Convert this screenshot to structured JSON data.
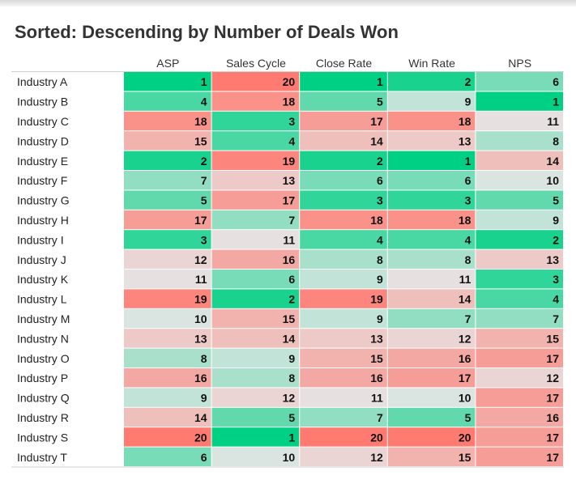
{
  "title": "Sorted: Descending by Number of Deals Won",
  "chart_data": {
    "type": "heatmap",
    "columns": [
      "ASP",
      "Sales Cycle",
      "Close Rate",
      "Win Rate",
      "NPS"
    ],
    "rows": [
      "Industry A",
      "Industry B",
      "Industry C",
      "Industry D",
      "Industry E",
      "Industry F",
      "Industry G",
      "Industry H",
      "Industry I",
      "Industry J",
      "Industry K",
      "Industry L",
      "Industry M",
      "Industry N",
      "Industry O",
      "Industry P",
      "Industry Q",
      "Industry R",
      "Industry S",
      "Industry T"
    ],
    "values": [
      [
        1,
        20,
        1,
        2,
        6
      ],
      [
        4,
        18,
        5,
        9,
        1
      ],
      [
        18,
        3,
        17,
        18,
        11
      ],
      [
        15,
        4,
        14,
        13,
        8
      ],
      [
        2,
        19,
        2,
        1,
        14
      ],
      [
        7,
        13,
        6,
        6,
        10
      ],
      [
        5,
        17,
        3,
        3,
        5
      ],
      [
        17,
        7,
        18,
        18,
        9
      ],
      [
        3,
        11,
        4,
        4,
        2
      ],
      [
        12,
        16,
        8,
        8,
        13
      ],
      [
        11,
        6,
        9,
        11,
        3
      ],
      [
        19,
        2,
        19,
        14,
        4
      ],
      [
        10,
        15,
        9,
        7,
        7
      ],
      [
        13,
        14,
        13,
        12,
        15
      ],
      [
        8,
        9,
        15,
        16,
        17
      ],
      [
        16,
        8,
        16,
        17,
        12
      ],
      [
        9,
        12,
        11,
        10,
        17
      ],
      [
        14,
        5,
        7,
        5,
        16
      ],
      [
        20,
        1,
        20,
        20,
        17
      ],
      [
        6,
        10,
        12,
        15,
        17
      ]
    ],
    "value_range": [
      1,
      20
    ],
    "colors": {
      "low": "#00d084",
      "mid": "#e6e6e6",
      "high": "#ff7b72"
    },
    "grid": false
  }
}
